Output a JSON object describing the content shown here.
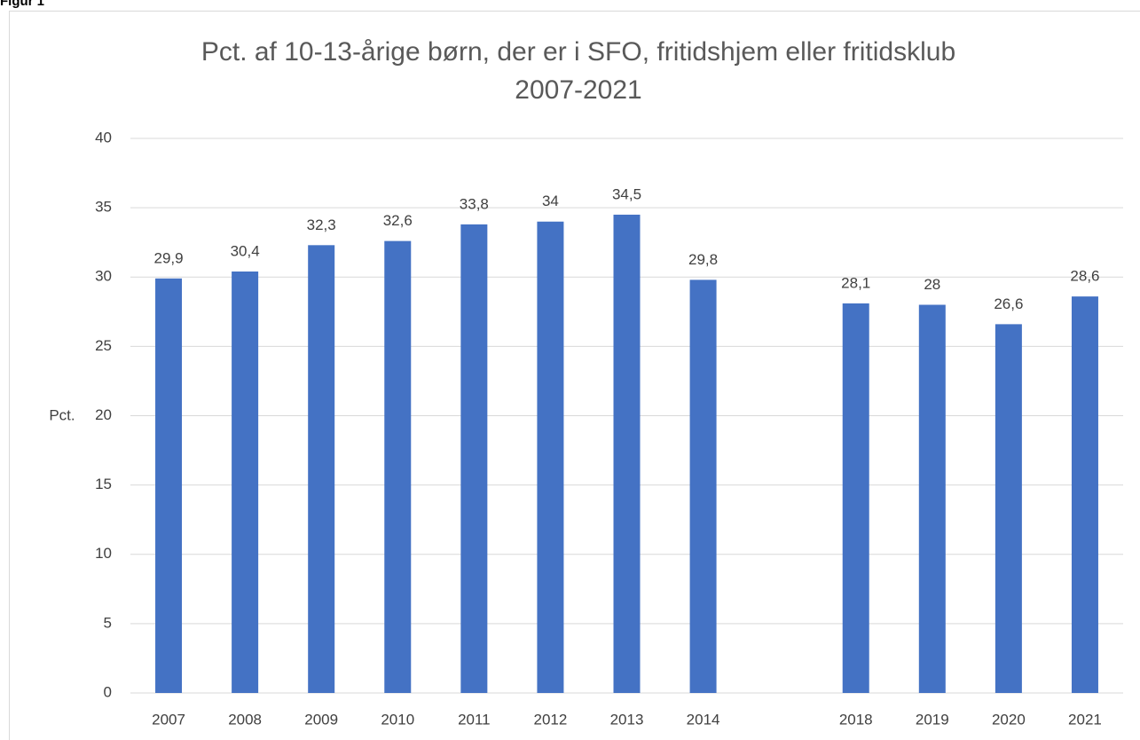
{
  "caption": "Figur 1",
  "chart_data": {
    "type": "bar",
    "title": "Pct. af 10-13-årige børn, der er i SFO, fritidshjem eller fritidsklub",
    "subtitle": "2007-2021",
    "y_label": "Pct.",
    "categories": [
      "2007",
      "2008",
      "2009",
      "2010",
      "2011",
      "2012",
      "2013",
      "2014",
      null,
      "2018",
      "2019",
      "2020",
      "2021"
    ],
    "values": [
      29.9,
      30.4,
      32.3,
      32.6,
      33.8,
      34,
      34.5,
      29.8,
      null,
      28.1,
      28,
      26.6,
      28.6
    ],
    "value_labels": [
      "29,9",
      "30,4",
      "32,3",
      "32,6",
      "33,8",
      "34",
      "34,5",
      "29,8",
      null,
      "28,1",
      "28",
      "26,6",
      "28,6"
    ],
    "color": "#4472c4",
    "ylim": [
      0,
      40
    ],
    "yticks": [
      0,
      5,
      10,
      15,
      20,
      25,
      30,
      35,
      40
    ],
    "grid": true
  }
}
